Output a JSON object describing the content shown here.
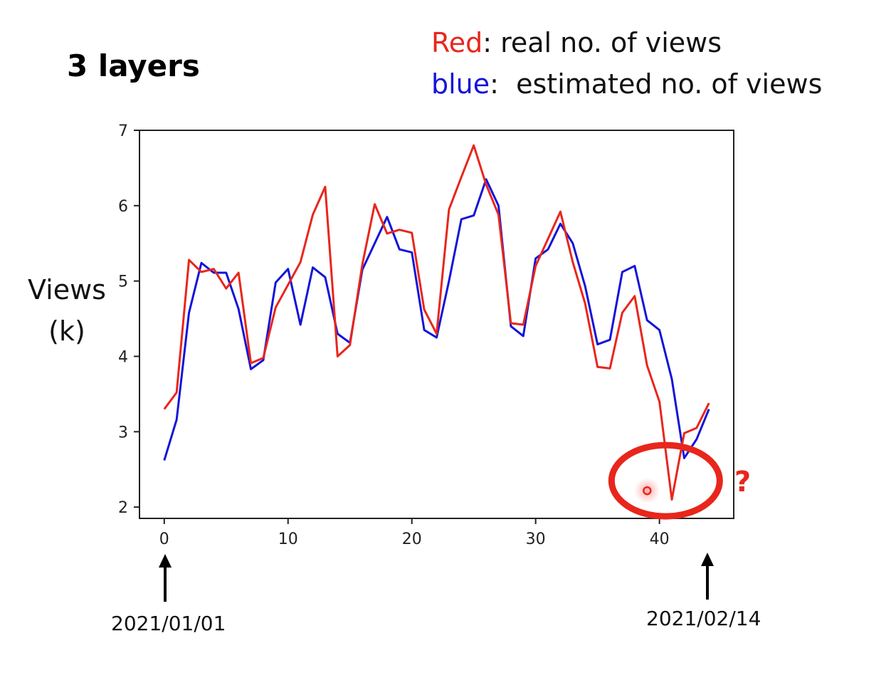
{
  "title": "3 layers",
  "legend": {
    "red_keyword": "Red",
    "red_text": ": real no. of views",
    "blue_keyword": "blue",
    "blue_text": ":  estimated no. of views"
  },
  "annotations": {
    "start_date": "2021/01/01",
    "end_date": "2021/02/14",
    "question_mark": "?",
    "highlight_x": 40.5,
    "highlight_y": 2.35
  },
  "colors": {
    "real": "#e8261c",
    "estimated": "#1414d8",
    "annotation": "#e8261c",
    "axis": "#222222"
  },
  "chart_data": {
    "type": "line",
    "ylabel_line1": "Views",
    "ylabel_line2": "(k)",
    "xlim": [
      -2,
      46
    ],
    "ylim": [
      1.85,
      7.0
    ],
    "xticks": [
      0,
      10,
      20,
      30,
      40
    ],
    "yticks": [
      2,
      3,
      4,
      5,
      6,
      7
    ],
    "x": [
      0,
      1,
      2,
      3,
      4,
      5,
      6,
      7,
      8,
      9,
      10,
      11,
      12,
      13,
      14,
      15,
      16,
      17,
      18,
      19,
      20,
      21,
      22,
      23,
      24,
      25,
      26,
      27,
      28,
      29,
      30,
      31,
      32,
      33,
      34,
      35,
      36,
      37,
      38,
      39,
      40,
      41,
      42,
      43,
      44
    ],
    "series": [
      {
        "name": "Red",
        "color_key": "real",
        "values": [
          3.3,
          3.52,
          5.28,
          5.12,
          5.16,
          4.9,
          5.11,
          3.91,
          3.98,
          4.65,
          4.95,
          5.25,
          5.88,
          6.25,
          4.0,
          4.15,
          5.22,
          6.02,
          5.63,
          5.68,
          5.64,
          4.62,
          4.3,
          5.95,
          6.38,
          6.8,
          6.28,
          5.88,
          4.44,
          4.42,
          5.2,
          5.56,
          5.92,
          5.25,
          4.7,
          3.86,
          3.84,
          4.58,
          4.8,
          3.88,
          3.4,
          2.1,
          2.98,
          3.05,
          3.38
        ]
      },
      {
        "name": "blue",
        "color_key": "estimated",
        "values": [
          2.62,
          3.16,
          4.58,
          5.24,
          5.11,
          5.11,
          4.63,
          3.83,
          3.95,
          4.98,
          5.16,
          4.42,
          5.18,
          5.05,
          4.3,
          4.18,
          5.15,
          5.5,
          5.85,
          5.42,
          5.38,
          4.35,
          4.25,
          5.0,
          5.82,
          5.87,
          6.35,
          6.0,
          4.4,
          4.27,
          5.3,
          5.42,
          5.76,
          5.5,
          4.93,
          4.16,
          4.22,
          5.12,
          5.2,
          4.48,
          4.35,
          3.7,
          2.65,
          2.9,
          3.3
        ]
      }
    ]
  }
}
